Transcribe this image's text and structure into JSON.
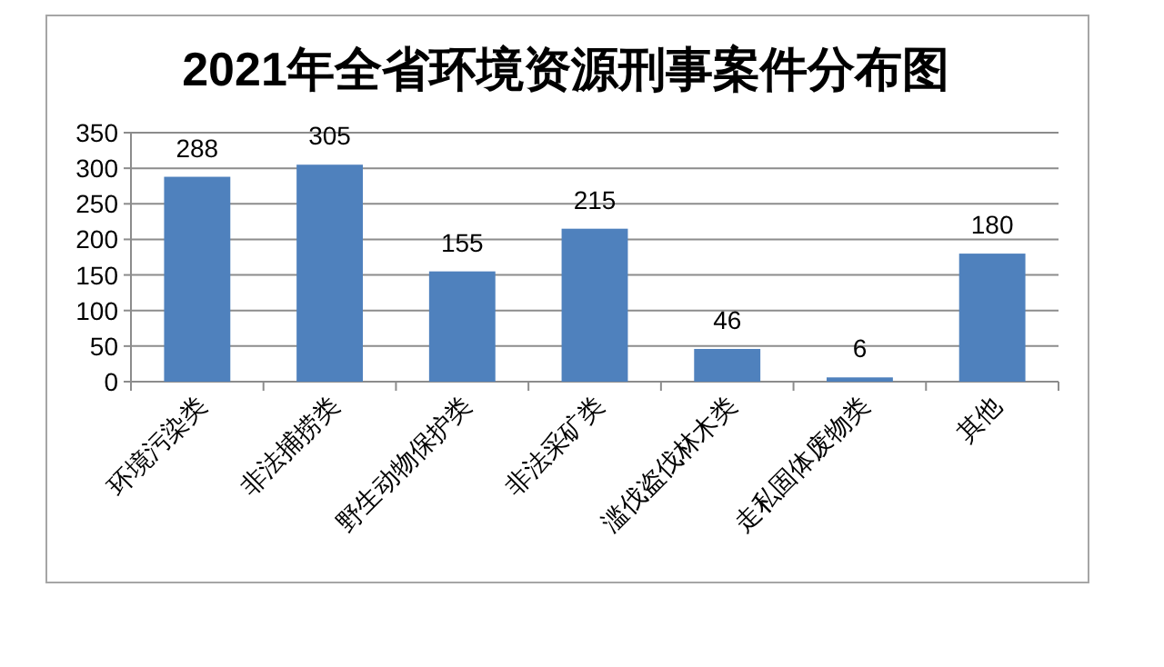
{
  "chart_data": {
    "type": "bar",
    "title": "2021年全省环境资源刑事案件分布图",
    "categories": [
      "环境污染类",
      "非法捕捞类",
      "野生动物保护类",
      "非法采矿类",
      "滥伐盗伐林木类",
      "走私固体废物类",
      "其他"
    ],
    "values": [
      288,
      305,
      155,
      215,
      46,
      6,
      180
    ],
    "color": "#4f81bd",
    "ylim": [
      0,
      350
    ],
    "yticks": [
      0,
      50,
      100,
      150,
      200,
      250,
      300,
      350
    ],
    "grid": "y",
    "data_labels": true
  }
}
